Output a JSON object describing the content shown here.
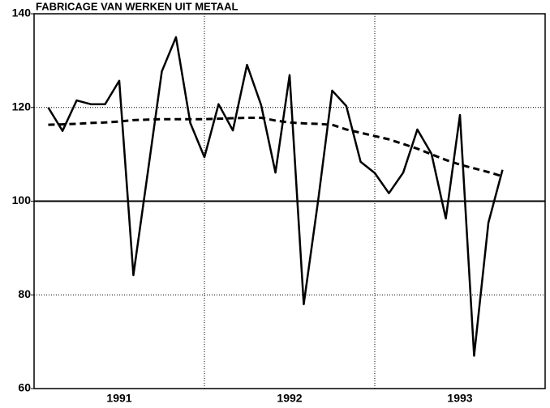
{
  "chart_data": {
    "type": "line",
    "title": "FABRICAGE VAN WERKEN UIT METAAL",
    "x": [
      1991.083,
      1991.167,
      1991.25,
      1991.333,
      1991.417,
      1991.5,
      1991.583,
      1991.667,
      1991.75,
      1991.833,
      1991.917,
      1992.0,
      1992.083,
      1992.167,
      1992.25,
      1992.333,
      1992.417,
      1992.5,
      1992.583,
      1992.667,
      1992.75,
      1992.833,
      1992.917,
      1993.0,
      1993.083,
      1993.167,
      1993.25,
      1993.333,
      1993.417,
      1993.5,
      1993.583,
      1993.667,
      1993.75
    ],
    "series": [
      {
        "color": "#000000",
        "dashed": false,
        "values": [
          120,
          115,
          121.5,
          120.7,
          120.7,
          125.7,
          84.2,
          106,
          127.7,
          135,
          116.7,
          109.4,
          120.7,
          115.1,
          129.1,
          120.5,
          106.1,
          126.9,
          78,
          100,
          123.6,
          120.3,
          108.4,
          106,
          101.7,
          106.1,
          115.3,
          110.1,
          96.3,
          118.4,
          67,
          95.4,
          106.7
        ]
      },
      {
        "color": "#000000",
        "dashed": true,
        "values": [
          116.3,
          116.4,
          116.5,
          116.7,
          116.8,
          117,
          117.3,
          117.4,
          117.5,
          117.5,
          117.5,
          117.5,
          117.6,
          117.7,
          117.8,
          117.8,
          117.2,
          116.8,
          116.6,
          116.5,
          116.3,
          115.3,
          114.6,
          113.9,
          113.2,
          112.2,
          111.2,
          110,
          108.8,
          107.8,
          107,
          106.2,
          105.3
        ]
      }
    ],
    "xlim": [
      1991,
      1994
    ],
    "xticks": [
      {
        "value": 1991.5,
        "label": "1991"
      },
      {
        "value": 1992.5,
        "label": "1992"
      },
      {
        "value": 1993.5,
        "label": "1993"
      }
    ],
    "xgrid": [
      1992,
      1993
    ],
    "ylim": [
      60,
      140
    ],
    "yticks": [
      60,
      80,
      100,
      120,
      140
    ],
    "reference_line": 100,
    "grid": true
  }
}
